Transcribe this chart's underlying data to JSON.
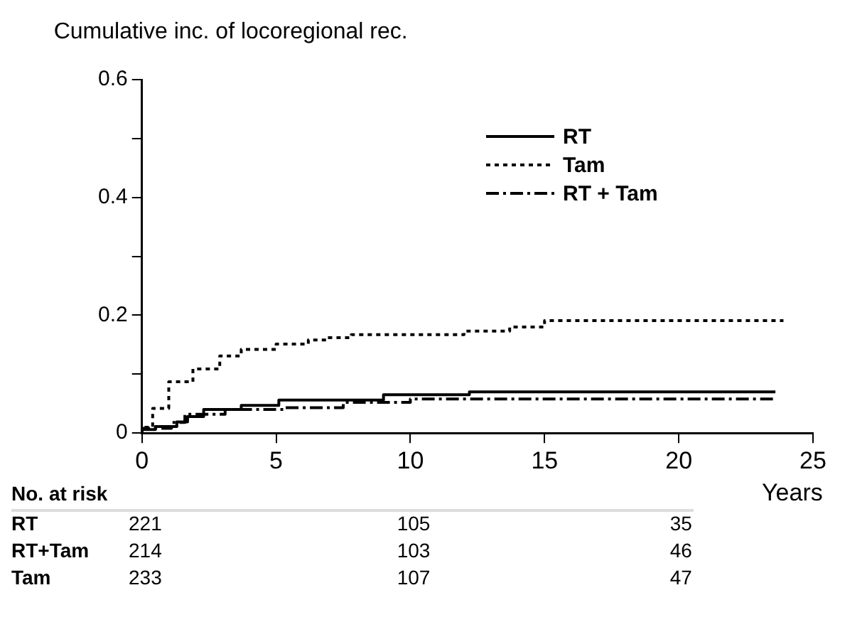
{
  "chart_data": {
    "type": "step",
    "ylabel": "Cumulative inc. of locoregional rec.",
    "xlabel": "Years",
    "xlim": [
      0,
      25
    ],
    "xticks": [
      0,
      5,
      10,
      15,
      20,
      25
    ],
    "ylim": [
      0,
      0.6
    ],
    "yticks": [
      0,
      {
        "value": 0.1,
        "label": null
      },
      {
        "value": 0.2,
        "label": "0.2"
      },
      {
        "value": 0.3,
        "label": null
      },
      {
        "value": 0.4,
        "label": "0.4"
      },
      {
        "value": 0.5,
        "label": null
      },
      {
        "value": 0.6,
        "label": "0.6"
      }
    ],
    "grid": false,
    "legend": "top right",
    "marker": "none",
    "series": [
      {
        "name": "RT",
        "color": "#000000",
        "line_style": "solid",
        "x": [
          0,
          0.5,
          1.3,
          1.7,
          2.3,
          3.7,
          5.1,
          9.0,
          12.2,
          13.9,
          23.6
        ],
        "values": [
          0,
          0.006,
          0.011,
          0.019,
          0.028,
          0.04,
          0.047,
          0.056,
          0.065,
          0.07,
          0.07
        ]
      },
      {
        "name": "Tam",
        "color": "#000000",
        "line_style": "dotted",
        "x": [
          0,
          0.4,
          1.0,
          1.9,
          2.9,
          3.7,
          5.0,
          6.2,
          6.9,
          7.8,
          12.0,
          13.7,
          15.0,
          16.5,
          23.9
        ],
        "values": [
          0,
          0.01,
          0.042,
          0.087,
          0.109,
          0.131,
          0.142,
          0.151,
          0.158,
          0.162,
          0.167,
          0.173,
          0.18,
          0.191,
          0.191
        ]
      },
      {
        "name": "RT + Tam",
        "color": "#000000",
        "line_style": "dashdot",
        "x": [
          0,
          1.1,
          1.6,
          3.1,
          5.3,
          7.5,
          10.0,
          12.3,
          23.6
        ],
        "values": [
          0,
          0.008,
          0.018,
          0.032,
          0.04,
          0.043,
          0.052,
          0.058,
          0.058
        ]
      }
    ],
    "annotations": [
      "No. at risk",
      "RT",
      "221",
      "105",
      "35",
      "RT+Tam",
      "214",
      "103",
      "46",
      "Tam",
      "233",
      "107",
      "47"
    ]
  }
}
